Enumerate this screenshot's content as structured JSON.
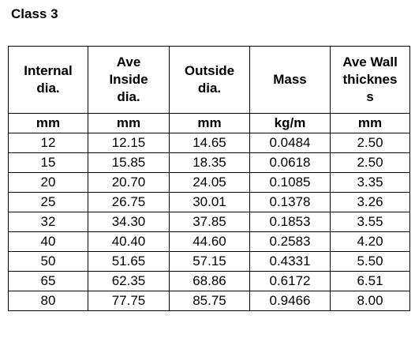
{
  "heading": "Class 3",
  "table": {
    "headers": [
      [
        "Internal",
        "dia."
      ],
      [
        "Ave",
        "Inside",
        "dia."
      ],
      [
        "Outside",
        "dia."
      ],
      [
        "Mass"
      ],
      [
        "Ave Wall",
        "thicknes",
        "s"
      ]
    ],
    "units": [
      "mm",
      "mm",
      "mm",
      "kg/m",
      "mm"
    ],
    "rows": [
      [
        "12",
        "12.15",
        "14.65",
        "0.0484",
        "2.50"
      ],
      [
        "15",
        "15.85",
        "18.35",
        "0.0618",
        "2.50"
      ],
      [
        "20",
        "20.70",
        "24.05",
        "0.1085",
        "3.35"
      ],
      [
        "25",
        "26.75",
        "30.01",
        "0.1378",
        "3.26"
      ],
      [
        "32",
        "34.30",
        "37.85",
        "0.1853",
        "3.55"
      ],
      [
        "40",
        "40.40",
        "44.60",
        "0.2583",
        "4.20"
      ],
      [
        "50",
        "51.65",
        "57.15",
        "0.4331",
        "5.50"
      ],
      [
        "65",
        "62.35",
        "68.86",
        "0.6172",
        "6.51"
      ],
      [
        "80",
        "77.75",
        "85.75",
        "0.9466",
        "8.00"
      ]
    ]
  }
}
